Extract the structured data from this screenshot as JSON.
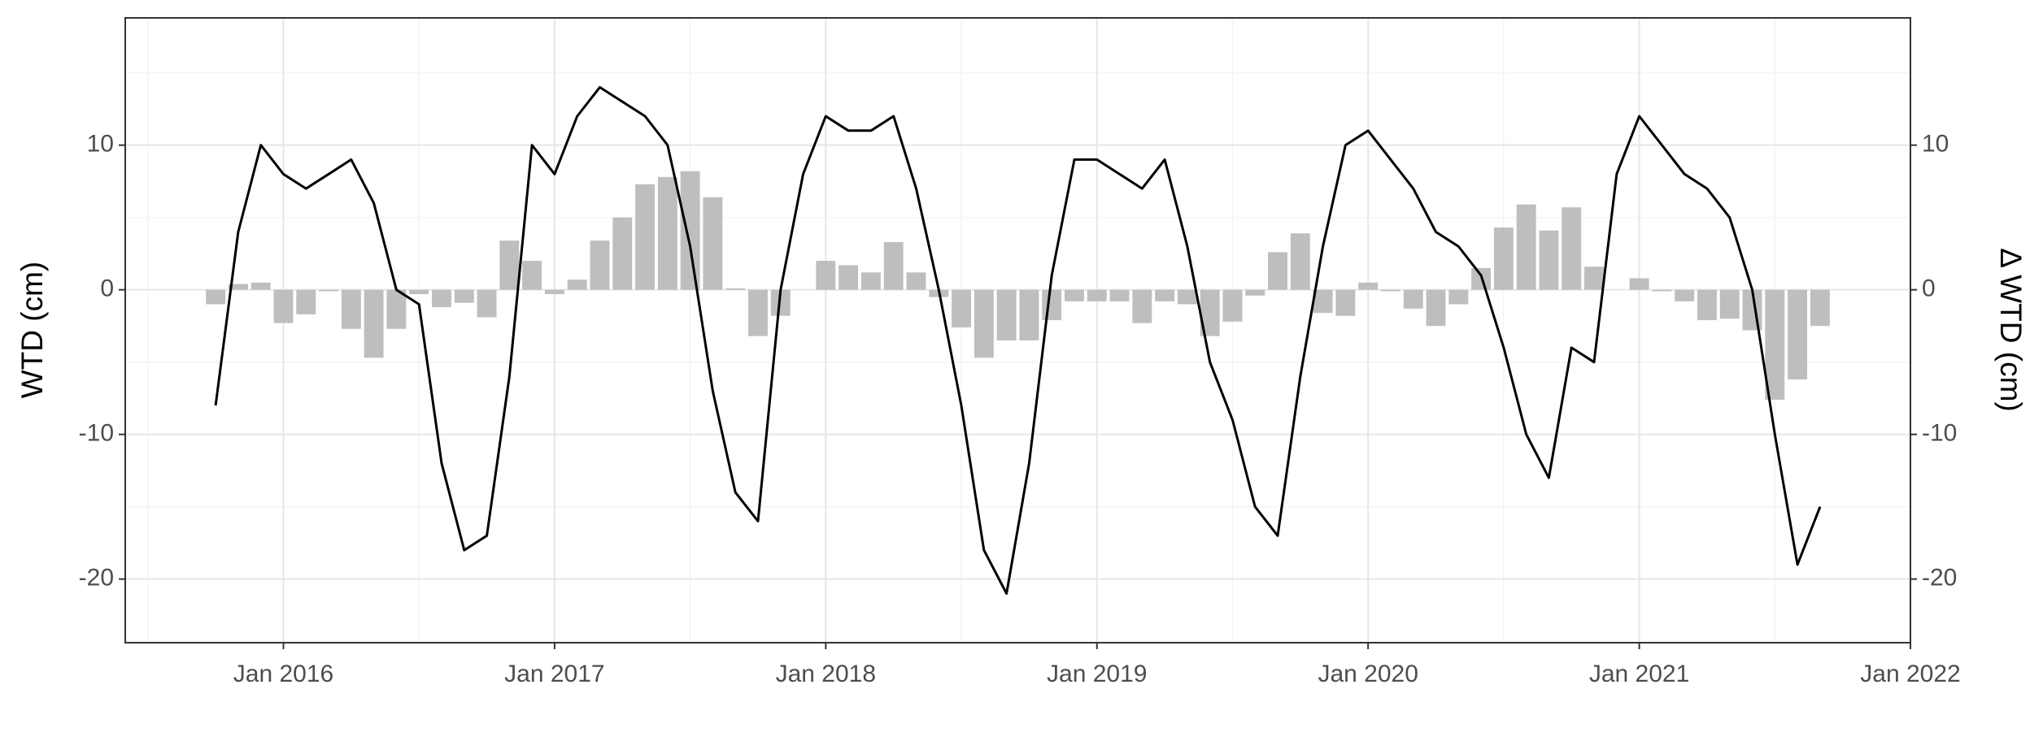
{
  "chart_data": {
    "type": "combo",
    "ylabel": "WTD (cm)",
    "y2label": "Δ WTD (cm)",
    "x": [
      "2015-10",
      "2015-11",
      "2015-12",
      "2016-01",
      "2016-02",
      "2016-03",
      "2016-04",
      "2016-05",
      "2016-06",
      "2016-07",
      "2016-08",
      "2016-09",
      "2016-10",
      "2016-11",
      "2016-12",
      "2017-01",
      "2017-02",
      "2017-03",
      "2017-04",
      "2017-05",
      "2017-06",
      "2017-07",
      "2017-08",
      "2017-09",
      "2017-10",
      "2017-11",
      "2017-12",
      "2018-01",
      "2018-02",
      "2018-03",
      "2018-04",
      "2018-05",
      "2018-06",
      "2018-07",
      "2018-08",
      "2018-09",
      "2018-10",
      "2018-11",
      "2018-12",
      "2019-01",
      "2019-02",
      "2019-03",
      "2019-04",
      "2019-05",
      "2019-06",
      "2019-07",
      "2019-08",
      "2019-09",
      "2019-10",
      "2019-11",
      "2019-12",
      "2020-01",
      "2020-02",
      "2020-03",
      "2020-04",
      "2020-05",
      "2020-06",
      "2020-07",
      "2020-08",
      "2020-09",
      "2020-10",
      "2020-11",
      "2020-12",
      "2021-01",
      "2021-02",
      "2021-03",
      "2021-04",
      "2021-05",
      "2021-06",
      "2021-07",
      "2021-08",
      "2021-09"
    ],
    "series": [
      {
        "type": "bar",
        "axis": "y2",
        "color": "#bebebe",
        "values": [
          -1.0,
          0.4,
          0.5,
          -2.3,
          -1.7,
          -0.1,
          -2.7,
          -4.7,
          -2.7,
          -0.3,
          -1.2,
          -0.9,
          -1.9,
          3.4,
          2.0,
          -0.3,
          0.7,
          3.4,
          5.0,
          7.3,
          7.8,
          8.2,
          6.4,
          0.1,
          -3.2,
          -1.8,
          0,
          2.0,
          1.7,
          1.2,
          3.3,
          1.2,
          -0.5,
          -2.6,
          -4.7,
          -3.5,
          -3.5,
          -2.1,
          -0.8,
          -0.8,
          -0.8,
          -2.3,
          -0.8,
          -1.0,
          -3.2,
          -2.2,
          -0.4,
          2.6,
          3.9,
          -1.6,
          -1.8,
          0.5,
          -0.1,
          -1.3,
          -2.5,
          -1.0,
          1.5,
          4.3,
          5.9,
          4.1,
          5.7,
          1.6,
          0,
          0.8,
          -0.1,
          -0.8,
          -2.1,
          -2.0,
          -2.8,
          -7.6,
          -6.2,
          -2.5
        ]
      },
      {
        "type": "line",
        "color": "#000000",
        "values": [
          -8,
          4,
          10,
          8,
          7,
          8,
          9,
          6,
          0,
          -1,
          -12,
          -18,
          -17,
          -6,
          10,
          8,
          12,
          14,
          13,
          12,
          10,
          3,
          -7,
          -14,
          -16,
          0,
          8,
          12,
          11,
          11,
          12,
          7,
          0,
          -8,
          -18,
          -21,
          -12,
          1,
          9,
          9,
          8,
          7,
          9,
          3,
          -5,
          -9,
          -15,
          -17,
          -6,
          3,
          10,
          11,
          9,
          7,
          4,
          3,
          1,
          -4,
          -10,
          -13,
          -4,
          -5,
          8,
          12,
          10,
          8,
          7,
          5,
          0,
          -10,
          -19,
          -15
        ]
      }
    ],
    "xlim": [
      "2015-06",
      "2022-01"
    ],
    "xticks": [
      {
        "value": "2016-01",
        "label": "Jan 2016"
      },
      {
        "value": "2017-01",
        "label": "Jan 2017"
      },
      {
        "value": "2018-01",
        "label": "Jan 2018"
      },
      {
        "value": "2019-01",
        "label": "Jan 2019"
      },
      {
        "value": "2020-01",
        "label": "Jan 2020"
      },
      {
        "value": "2021-01",
        "label": "Jan 2021"
      },
      {
        "value": "2022-01",
        "label": "Jan 2022"
      }
    ],
    "ylim": [
      -24.4,
      18.8
    ],
    "yticks": [
      -20,
      -10,
      0,
      10
    ],
    "y2lim": [
      -24.4,
      18.8
    ],
    "y2ticks": [
      -20,
      -10,
      0,
      10
    ],
    "grid": true
  }
}
